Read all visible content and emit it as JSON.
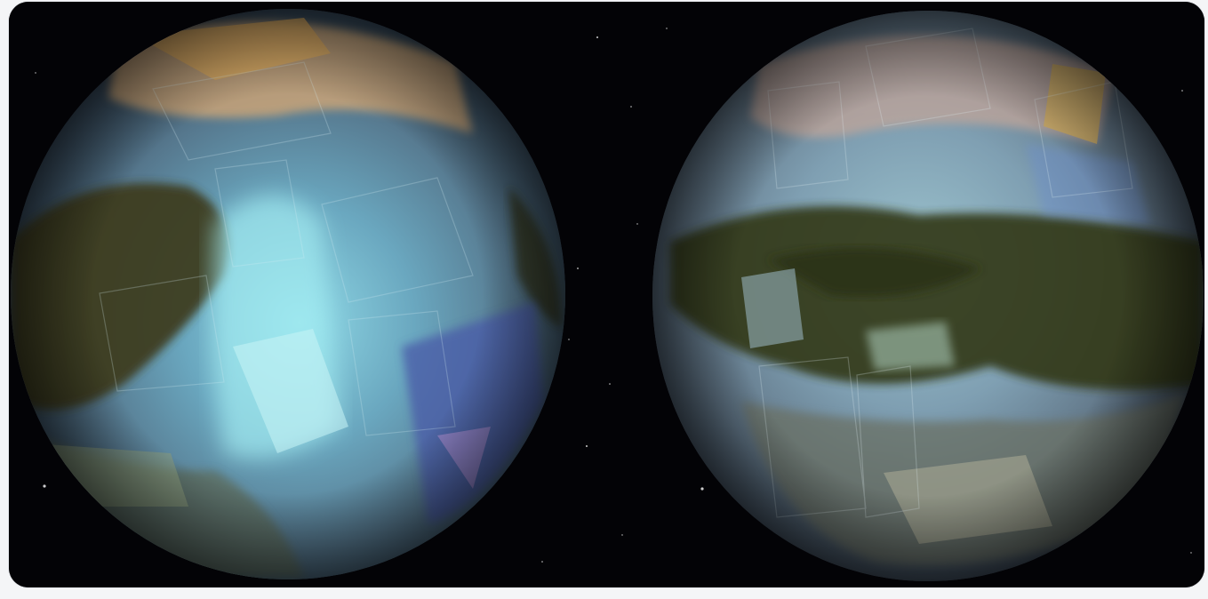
{
  "image": {
    "subject": "two-titan-mosaic-globes",
    "background_color": "#030306",
    "frame_color": "#f4f5f7"
  },
  "globes": [
    {
      "name": "left-hemisphere",
      "palette": [
        "#7fd8e6",
        "#4f7fa6",
        "#3b3a1c",
        "#c9a16e",
        "#6a5fb0"
      ]
    },
    {
      "name": "right-hemisphere",
      "palette": [
        "#9fc7cf",
        "#5a7f96",
        "#2f3515",
        "#c7a070",
        "#7d7fb6"
      ]
    }
  ]
}
